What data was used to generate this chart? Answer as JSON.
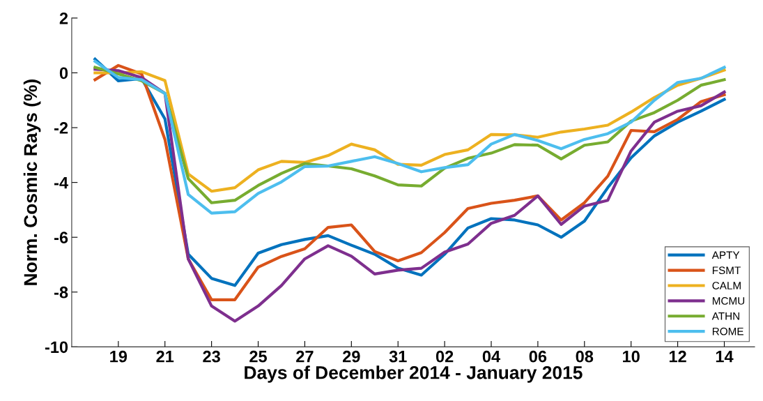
{
  "chart_data": {
    "type": "line",
    "xlabel": "Days of December 2014 - January 2015",
    "ylabel": "Norm. Cosmic Rays (%)",
    "categories": [
      null,
      "19",
      null,
      "21",
      null,
      "23",
      null,
      "25",
      null,
      "27",
      null,
      "29",
      null,
      "31",
      null,
      "02",
      null,
      "04",
      null,
      "06",
      null,
      "08",
      null,
      "10",
      null,
      "12",
      null,
      "14"
    ],
    "ylim": [
      -10,
      2
    ],
    "yticks": [
      -10,
      -8,
      -6,
      -4,
      -2,
      0,
      2
    ],
    "grid": false,
    "legend": "bottom right",
    "marker": "none",
    "line_style": "solid",
    "series": [
      {
        "name": "APTY",
        "color": "#0072bd",
        "values": [
          0.5,
          -0.29,
          -0.21,
          -1.68,
          -6.62,
          -7.5,
          -7.76,
          -6.58,
          -6.27,
          -6.08,
          -5.94,
          -6.29,
          -6.62,
          -7.13,
          -7.38,
          -6.62,
          -5.66,
          -5.32,
          -5.37,
          -5.55,
          -6.0,
          -5.41,
          -4.19,
          -3.1,
          -2.3,
          -1.8,
          -1.4,
          -0.97
        ]
      },
      {
        "name": "FSMT",
        "color": "#d95319",
        "values": [
          -0.25,
          0.27,
          -0.04,
          -2.43,
          -6.79,
          -8.28,
          -8.28,
          -7.09,
          -6.7,
          -6.42,
          -5.64,
          -5.55,
          -6.52,
          -6.86,
          -6.56,
          -5.83,
          -4.95,
          -4.76,
          -4.65,
          -4.49,
          -5.37,
          -4.74,
          -3.77,
          -2.1,
          -2.15,
          -1.7,
          -1.05,
          -0.8
        ]
      },
      {
        "name": "CALM",
        "color": "#edb120",
        "values": [
          0.0,
          0.0,
          0.04,
          -0.28,
          -3.69,
          -4.32,
          -4.19,
          -3.54,
          -3.23,
          -3.27,
          -3.02,
          -2.6,
          -2.81,
          -3.34,
          -3.37,
          -2.98,
          -2.81,
          -2.25,
          -2.26,
          -2.35,
          -2.16,
          -2.05,
          -1.91,
          -1.43,
          -0.9,
          -0.45,
          -0.2,
          0.1
        ]
      },
      {
        "name": "MCMU",
        "color": "#7e2f8e",
        "values": [
          0.13,
          0.08,
          -0.17,
          -0.75,
          -6.79,
          -8.51,
          -9.06,
          -8.51,
          -7.76,
          -6.79,
          -6.31,
          -6.69,
          -7.34,
          -7.2,
          -7.13,
          -6.54,
          -6.25,
          -5.49,
          -5.2,
          -4.49,
          -5.53,
          -4.86,
          -4.65,
          -2.85,
          -1.8,
          -1.4,
          -1.2,
          -0.7
        ]
      },
      {
        "name": "ATHN",
        "color": "#77ac30",
        "values": [
          0.2,
          -0.04,
          -0.29,
          -0.75,
          -3.86,
          -4.74,
          -4.65,
          -4.11,
          -3.67,
          -3.31,
          -3.4,
          -3.5,
          -3.76,
          -4.09,
          -4.13,
          -3.48,
          -3.12,
          -2.93,
          -2.62,
          -2.64,
          -3.14,
          -2.64,
          -2.52,
          -1.76,
          -1.45,
          -1.0,
          -0.45,
          -0.25
        ]
      },
      {
        "name": "ROME",
        "color": "#4dbeee",
        "values": [
          0.42,
          -0.17,
          -0.25,
          -0.75,
          -4.44,
          -5.12,
          -5.07,
          -4.4,
          -3.98,
          -3.42,
          -3.4,
          -3.23,
          -3.06,
          -3.31,
          -3.61,
          -3.46,
          -3.35,
          -2.6,
          -2.25,
          -2.47,
          -2.77,
          -2.43,
          -2.22,
          -1.8,
          -1.0,
          -0.35,
          -0.2,
          0.2
        ]
      }
    ]
  }
}
